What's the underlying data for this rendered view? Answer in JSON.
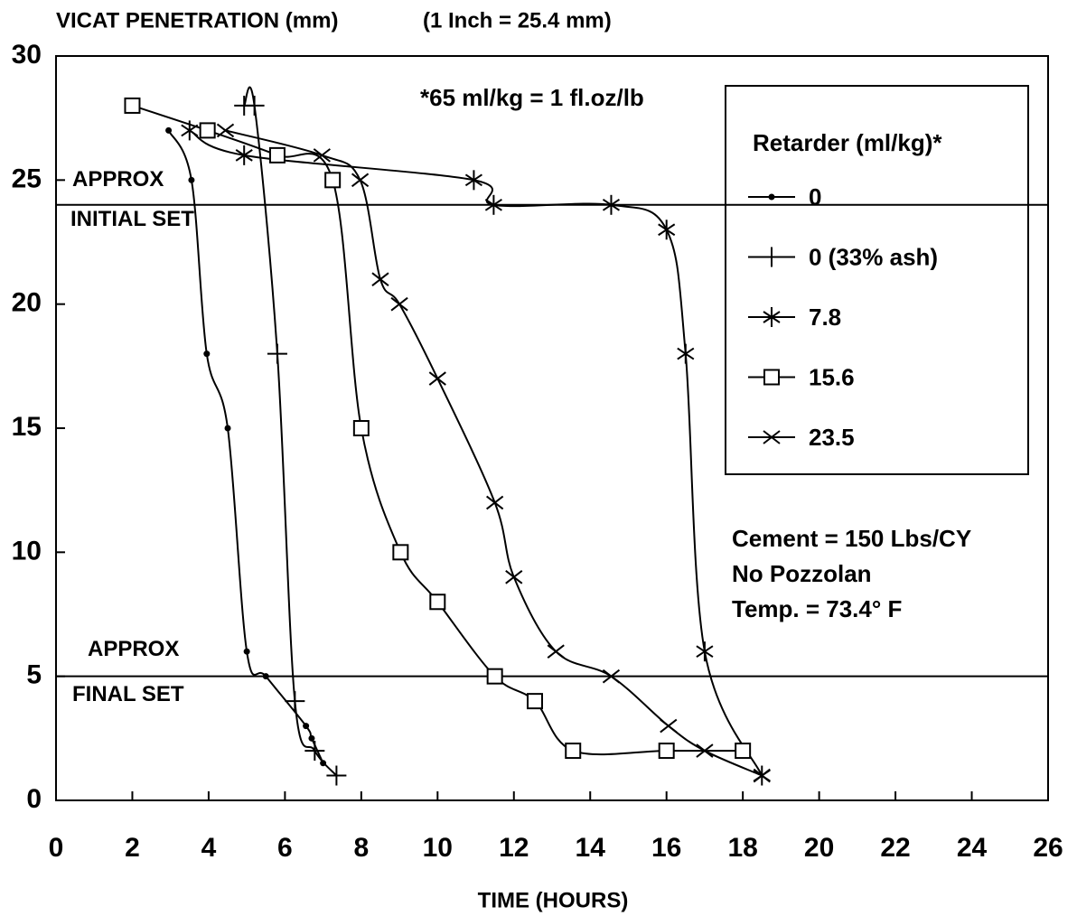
{
  "chart_data": {
    "type": "line",
    "title": "VICAT PENETRATION (mm)",
    "subtitle": "(1 Inch = 25.4 mm)",
    "x_label": "TIME (HOURS)",
    "footnote": "*65 ml/kg = 1 fl.oz/lb",
    "legend_title": "Retarder (ml/kg)*",
    "legend": "upper right",
    "notes": [
      "Cement = 150 Lbs/CY",
      "No Pozzolan",
      "Temp. = 73.4° F"
    ],
    "reference_lines": [
      {
        "value": 24,
        "labels": [
          "APPROX",
          "INITIAL SET"
        ]
      },
      {
        "value": 5,
        "labels": [
          "APPROX",
          "FINAL SET"
        ]
      }
    ],
    "xlim": [
      0,
      26
    ],
    "xticks": [
      0,
      2,
      4,
      6,
      8,
      10,
      12,
      14,
      16,
      18,
      20,
      22,
      24,
      26
    ],
    "ylim": [
      0,
      30
    ],
    "yticks": [
      0,
      5,
      10,
      15,
      20,
      25,
      30
    ],
    "series": [
      {
        "name": "0",
        "color": "#000000",
        "marker": "dot",
        "x": [
          2.95,
          3.55,
          3.95,
          4.5,
          5,
          5.5,
          6.55,
          6.7,
          7
        ],
        "values": [
          27,
          25,
          18,
          15,
          6,
          5,
          3,
          2.5,
          1.5
        ]
      },
      {
        "name": "0 (33% ash)",
        "color": "#000000",
        "marker": "plus",
        "x": [
          4.93,
          5.2,
          5.8,
          6.26,
          6.78,
          7.35
        ],
        "values": [
          28,
          28,
          18,
          4,
          2,
          1
        ]
      },
      {
        "name": "7.8",
        "color": "#000000",
        "marker": "asterisk",
        "x": [
          3.5,
          4.93,
          10.95,
          11.47,
          14.55,
          16,
          16.5,
          17,
          18.5
        ],
        "values": [
          27,
          26,
          25,
          24,
          24,
          23,
          18,
          6,
          1
        ]
      },
      {
        "name": "15.6",
        "color": "#000000",
        "marker": "square",
        "x": [
          2,
          3.97,
          5.8,
          7.25,
          8,
          9.03,
          10,
          11.5,
          12.55,
          13.55,
          16,
          18
        ],
        "values": [
          28,
          27,
          26,
          25,
          15,
          10,
          8,
          5,
          4,
          2,
          2,
          2
        ]
      },
      {
        "name": "23.5",
        "color": "#000000",
        "marker": "x",
        "x": [
          4.44,
          6.97,
          7.97,
          8.5,
          9,
          10,
          11.5,
          12,
          13.1,
          14.55,
          16.05,
          17,
          18.5
        ],
        "values": [
          27,
          26,
          25,
          21,
          20,
          17,
          12,
          9,
          6,
          5,
          3,
          2,
          1
        ]
      }
    ]
  }
}
